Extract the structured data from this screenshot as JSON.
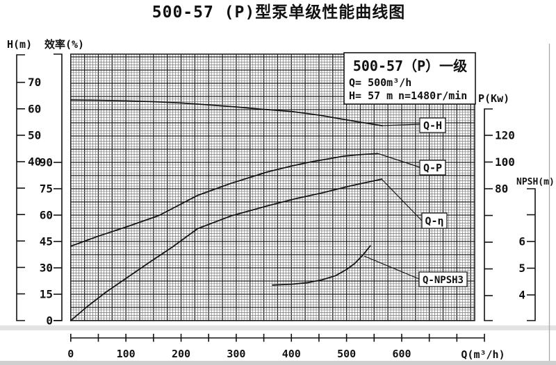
{
  "title": "500-57 (P)型泵单级性能曲线图",
  "colors": {
    "title_red": "#cc2b2b",
    "line_black": "#141414",
    "grid_minor": "#777777",
    "grid_major": "#222222"
  },
  "info_box": {
    "model": "500-57（P）一级",
    "q_line": "Q= 500m³/h",
    "h_line": "H= 57 m",
    "n_line": "n=1480r/min"
  },
  "chart_data": {
    "type": "line",
    "title": "500-57 (P)型泵单级性能曲线图",
    "grid": "on",
    "x_axis": {
      "label": "Q(m³/h)",
      "range": [
        0,
        750
      ],
      "ticks": [
        0,
        50,
        100,
        150,
        200,
        250,
        300,
        350,
        400,
        450,
        500,
        550,
        600,
        650,
        700,
        750
      ],
      "labeled_ticks": [
        0,
        100,
        200,
        300,
        400,
        500,
        600
      ]
    },
    "y_axes": [
      {
        "id": "H",
        "label": "H(m)",
        "side": "left",
        "ticks": [
          70,
          60,
          50,
          40,
          30,
          20,
          10,
          0,
          -10
        ],
        "labeled_ticks": [
          70,
          60,
          50,
          40
        ]
      },
      {
        "id": "eta",
        "label": "效率(%)",
        "side": "left",
        "ticks": [
          90,
          75,
          60,
          45,
          30,
          15,
          0
        ],
        "labeled_ticks": [
          90,
          75,
          60,
          45,
          30,
          15,
          0
        ]
      },
      {
        "id": "P",
        "label": "P(Kw)",
        "side": "right",
        "ticks": [
          120,
          100,
          80,
          60,
          40,
          20,
          0
        ],
        "labeled_ticks": [
          120,
          100,
          80
        ]
      },
      {
        "id": "NPSH",
        "label": "NPSH(m)",
        "side": "right",
        "ticks": [
          7,
          6,
          5,
          4
        ],
        "labeled_ticks": [
          6,
          5,
          4
        ]
      }
    ],
    "series": [
      {
        "name": "Q-H",
        "axis": "H",
        "points": [
          [
            0,
            63.3
          ],
          [
            50,
            63.2
          ],
          [
            100,
            63.0
          ],
          [
            150,
            62.7
          ],
          [
            200,
            62.2
          ],
          [
            250,
            61.5
          ],
          [
            300,
            60.7
          ],
          [
            350,
            59.8
          ],
          [
            400,
            59.0
          ],
          [
            450,
            57.6
          ],
          [
            500,
            55.8
          ],
          [
            535,
            54.6
          ],
          [
            565,
            53.6
          ]
        ]
      },
      {
        "name": "Q-P",
        "axis": "P",
        "points": [
          [
            0,
            37.0
          ],
          [
            50,
            44.5
          ],
          [
            105,
            52
          ],
          [
            160,
            60
          ],
          [
            230,
            75
          ],
          [
            290,
            84
          ],
          [
            356,
            92.5
          ],
          [
            400,
            97
          ],
          [
            434,
            100
          ],
          [
            497,
            104.5
          ],
          [
            530,
            105.7
          ],
          [
            556,
            106.3
          ]
        ]
      },
      {
        "name": "Q-η",
        "axis": "eta",
        "points": [
          [
            0,
            0
          ],
          [
            30,
            8
          ],
          [
            63,
            16
          ],
          [
            100,
            24
          ],
          [
            142,
            33
          ],
          [
            185,
            42
          ],
          [
            230,
            52.3
          ],
          [
            290,
            59.5
          ],
          [
            356,
            65.2
          ],
          [
            410,
            69.5
          ],
          [
            455,
            72.6
          ],
          [
            505,
            76.5
          ],
          [
            564,
            80.5
          ]
        ]
      },
      {
        "name": "Q-NPSH3",
        "axis": "NPSH",
        "points": [
          [
            366,
            4.37
          ],
          [
            400,
            4.4
          ],
          [
            430,
            4.46
          ],
          [
            455,
            4.56
          ],
          [
            480,
            4.72
          ],
          [
            500,
            4.95
          ],
          [
            515,
            5.18
          ],
          [
            530,
            5.5
          ],
          [
            543,
            5.84
          ]
        ]
      }
    ],
    "rated_point": {
      "Q": 500,
      "H": 57,
      "n": "1480r/min"
    }
  }
}
